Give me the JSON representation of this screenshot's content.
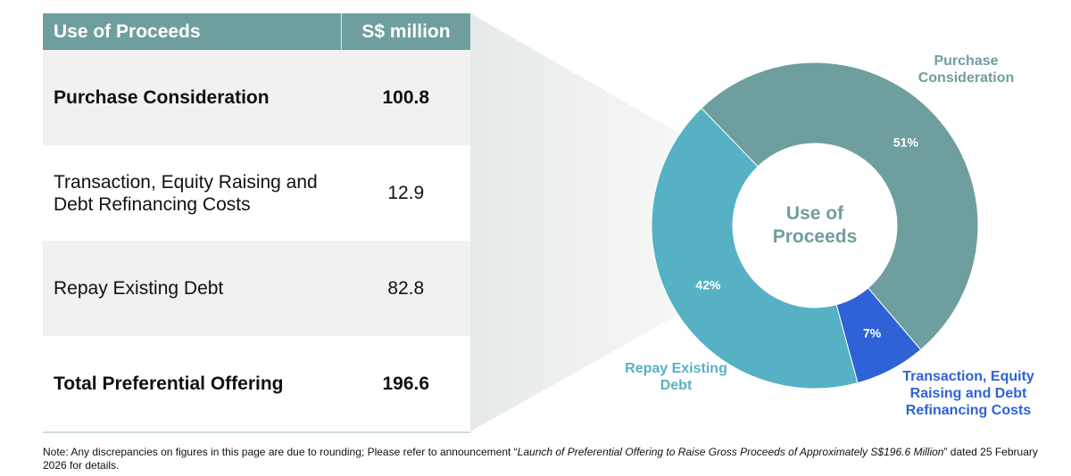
{
  "table": {
    "header": [
      "Use of Proceeds",
      "S$ million"
    ],
    "rows": [
      [
        "Purchase Consideration",
        100.8
      ],
      [
        "Transaction, Equity Raising and Debt Refinancing Costs",
        12.9
      ],
      [
        "Repay Existing Debt",
        82.8
      ],
      [
        "Total Preferential Offering",
        196.6
      ]
    ]
  },
  "chart_data": {
    "type": "donut",
    "center_label": "Use of Proceeds",
    "categories": [
      "Purchase Consideration",
      "Transaction, Equity Raising and Debt Refinancing Costs",
      "Repay Existing Debt"
    ],
    "values": [
      51,
      7,
      42
    ],
    "value_labels": [
      "51%",
      "7%",
      "42%"
    ],
    "colors": [
      "#6f9e9e",
      "#2e62d6",
      "#56b1c4"
    ]
  },
  "note": {
    "prefix": "Note: Any discrepancies on figures in this page are due to rounding; Please refer to announcement “",
    "italic": "Launch of Preferential Offering to Raise Gross Proceeds of Approximately S$196.6 Million",
    "suffix": "” dated 25 February 2026 for details."
  }
}
